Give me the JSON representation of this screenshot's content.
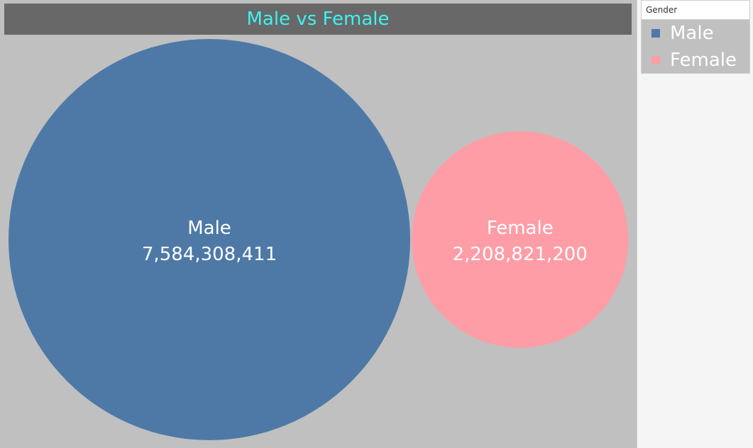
{
  "chart_data": {
    "type": "bubble",
    "title": "Male vs Female",
    "categories": [
      "Male",
      "Female"
    ],
    "values": [
      7584308411,
      2208821200
    ],
    "value_labels": [
      "7,584,308,411",
      "2,208,821,200"
    ],
    "colors": [
      "#4e79a7",
      "#ff9da7"
    ],
    "legend": {
      "title": "Gender",
      "placement": "top-right",
      "items": [
        "Male",
        "Female"
      ]
    }
  }
}
